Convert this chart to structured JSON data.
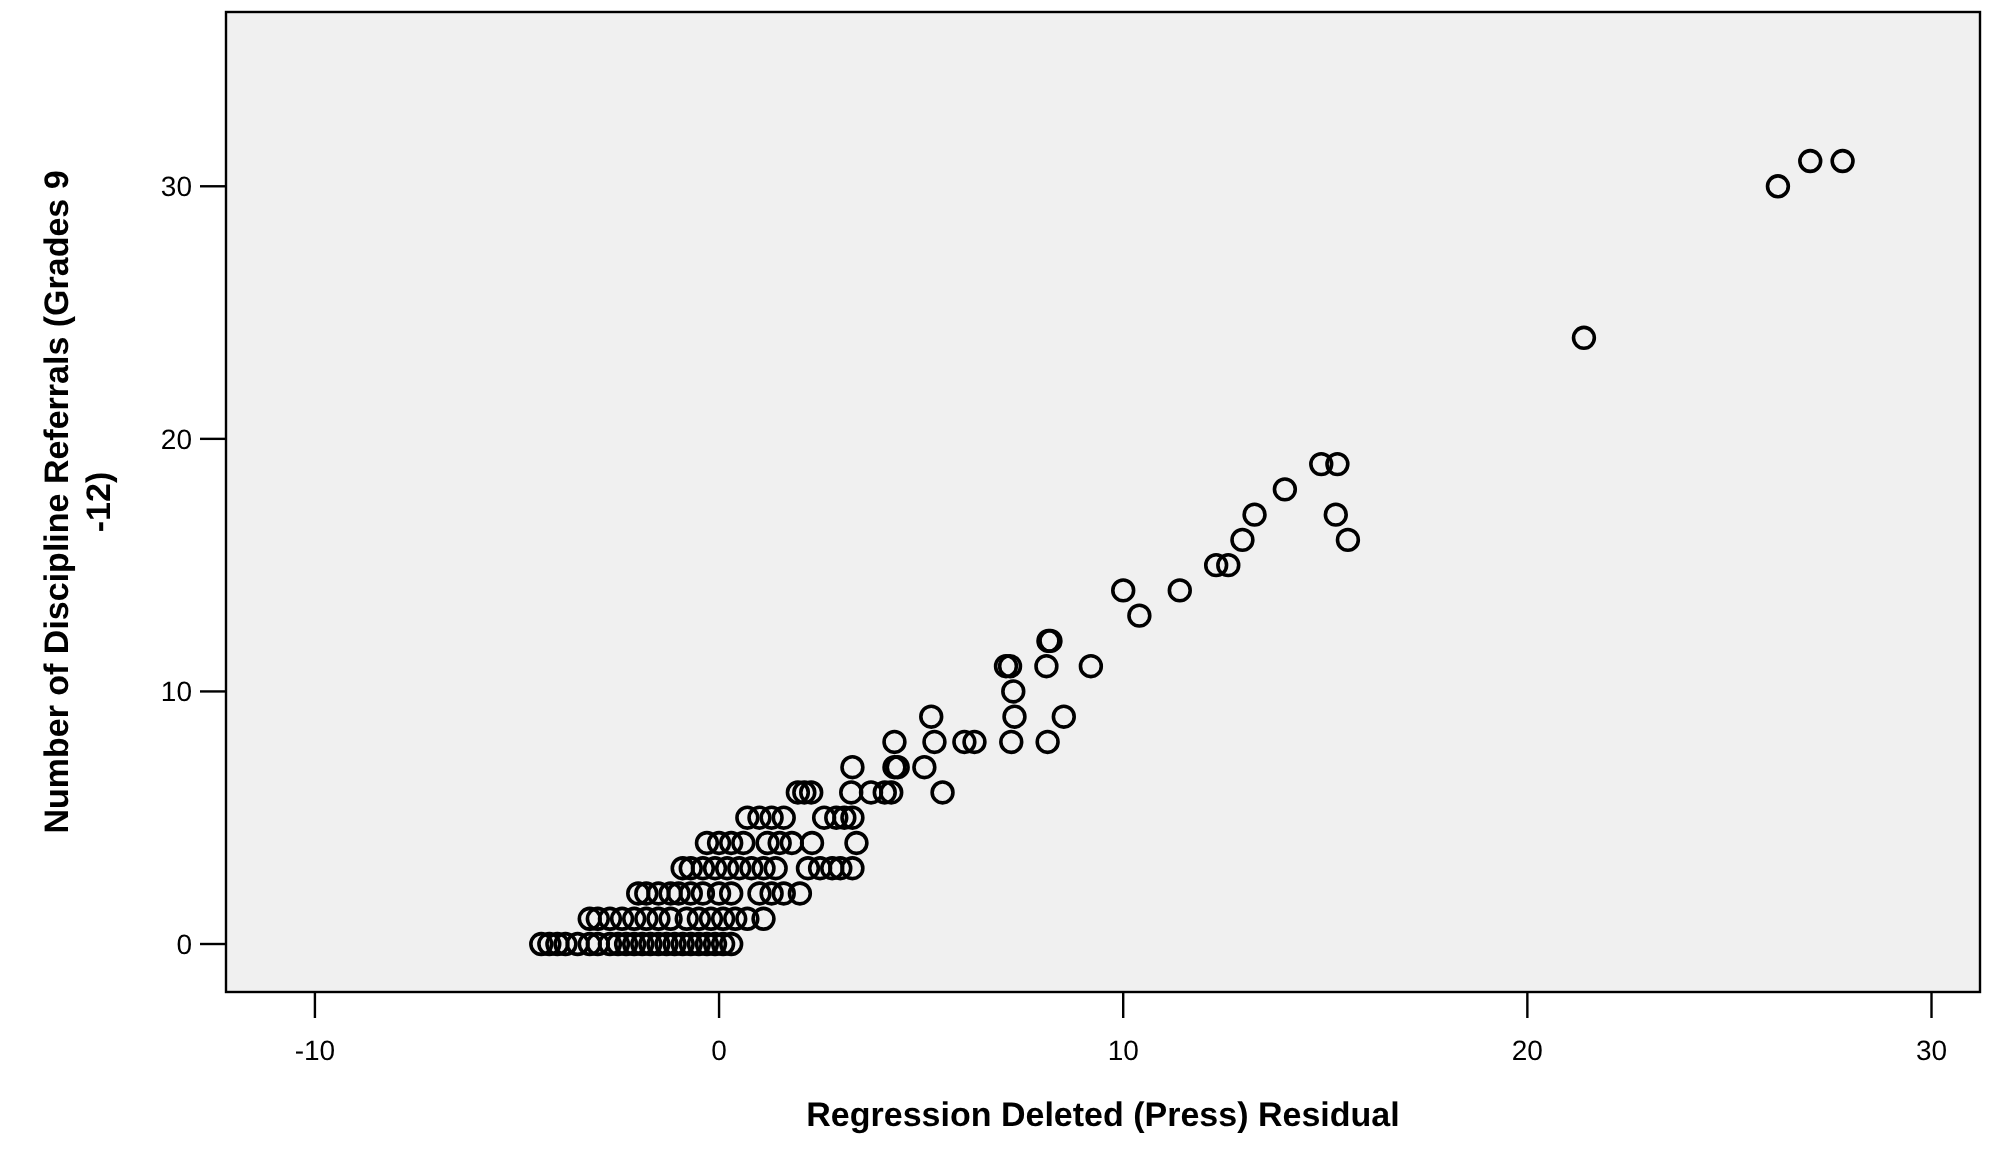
{
  "chart_data": {
    "type": "scatter",
    "xlabel": "Regression Deleted (Press) Residual",
    "ylabel": "Number of Discipline Referrals (Grades 9 -12)",
    "xlim": [
      -12.2,
      31.2
    ],
    "ylim": [
      -1.9,
      36.9
    ],
    "xticks": [
      -10,
      0,
      10,
      20,
      30
    ],
    "yticks": [
      0,
      10,
      20,
      30
    ],
    "grid": false,
    "marker": "circle",
    "series": [
      {
        "color": "#000000",
        "x": [
          -4.4,
          -4.2,
          -4.0,
          -3.8,
          -3.5,
          -3.2,
          -3.0,
          -2.7,
          -2.5,
          -2.3,
          -2.1,
          -1.9,
          -1.7,
          -1.5,
          -1.3,
          -1.1,
          -0.9,
          -0.7,
          -0.5,
          -0.3,
          -0.1,
          0.1,
          0.3,
          -3.2,
          -3.0,
          -2.7,
          -2.4,
          -2.1,
          -1.8,
          -1.5,
          -1.2,
          -0.8,
          -0.5,
          -0.2,
          0.1,
          0.4,
          0.7,
          1.1,
          -2.0,
          -1.8,
          -1.5,
          -1.2,
          -1.0,
          -0.7,
          -0.4,
          0.0,
          0.3,
          1.0,
          1.3,
          1.6,
          2.0,
          -0.9,
          -0.7,
          -0.4,
          -0.1,
          0.2,
          0.5,
          0.8,
          1.1,
          1.4,
          2.2,
          2.5,
          2.8,
          3.0,
          3.3,
          -0.3,
          0.0,
          0.3,
          0.6,
          1.2,
          1.5,
          1.8,
          2.3,
          3.4,
          0.7,
          1.0,
          1.3,
          1.6,
          2.6,
          2.9,
          3.1,
          3.3,
          1.95,
          2.11,
          2.28,
          3.27,
          3.76,
          4.1,
          4.26,
          5.53,
          3.3,
          4.34,
          4.42,
          5.08,
          4.34,
          5.33,
          6.07,
          6.32,
          7.23,
          8.13,
          5.25,
          7.31,
          8.53,
          7.28,
          7.1,
          7.2,
          8.1,
          9.2,
          8.15,
          8.2,
          10.4,
          10.0,
          11.4,
          12.3,
          12.6,
          12.95,
          15.56,
          13.25,
          15.26,
          14.0,
          14.9,
          15.3,
          21.4,
          26.2,
          27.0,
          27.8
        ],
        "values": [
          0,
          0,
          0,
          0,
          0,
          0,
          0,
          0,
          0,
          0,
          0,
          0,
          0,
          0,
          0,
          0,
          0,
          0,
          0,
          0,
          0,
          0,
          0,
          1,
          1,
          1,
          1,
          1,
          1,
          1,
          1,
          1,
          1,
          1,
          1,
          1,
          1,
          1,
          2,
          2,
          2,
          2,
          2,
          2,
          2,
          2,
          2,
          2,
          2,
          2,
          2,
          3,
          3,
          3,
          3,
          3,
          3,
          3,
          3,
          3,
          3,
          3,
          3,
          3,
          3,
          4,
          4,
          4,
          4,
          4,
          4,
          4,
          4,
          4,
          5,
          5,
          5,
          5,
          5,
          5,
          5,
          5,
          6,
          6,
          6,
          6,
          6,
          6,
          6,
          6,
          7,
          7,
          7,
          7,
          8,
          8,
          8,
          8,
          8,
          8,
          9,
          9,
          9,
          10,
          11,
          11,
          11,
          11,
          12,
          12,
          13,
          14,
          14,
          15,
          15,
          16,
          16,
          17,
          17,
          18,
          19,
          19,
          24,
          30,
          31,
          31
        ]
      }
    ]
  }
}
